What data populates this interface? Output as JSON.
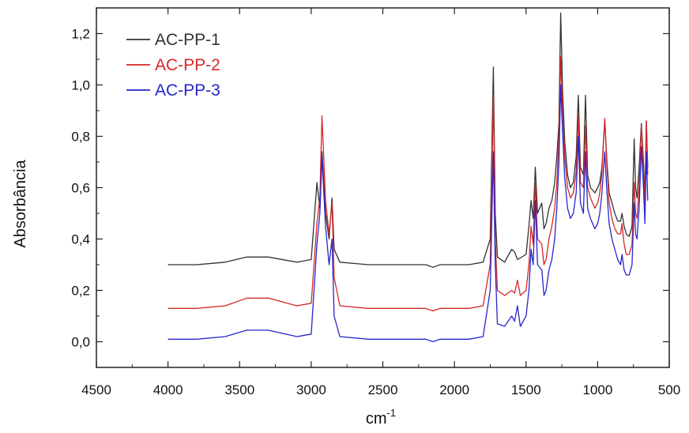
{
  "chart_data": {
    "type": "line",
    "title": "",
    "xlabel": "cm",
    "xlabel_superscript": "-1",
    "ylabel": "Absorbância",
    "xlim": [
      4500,
      500
    ],
    "ylim": [
      -0.1,
      1.3
    ],
    "x_reversed": true,
    "xticks": [
      4500,
      4000,
      3500,
      3000,
      2500,
      2000,
      1500,
      1000,
      500
    ],
    "xtick_labels": [
      "4500",
      "4000",
      "3500",
      "3000",
      "2500",
      "2000",
      "1500",
      "1000",
      "500"
    ],
    "yticks": [
      0.0,
      0.2,
      0.4,
      0.6,
      0.8,
      1.0,
      1.2
    ],
    "ytick_labels": [
      "0,0",
      "0,2",
      "0,4",
      "0,6",
      "0,8",
      "1,0",
      "1,2"
    ],
    "grid": false,
    "legend_position": "top-left",
    "series": [
      {
        "name": "AC-PP-1",
        "color": "#333333",
        "points": [
          [
            4000,
            0.3
          ],
          [
            3800,
            0.3
          ],
          [
            3600,
            0.31
          ],
          [
            3450,
            0.33
          ],
          [
            3300,
            0.33
          ],
          [
            3100,
            0.31
          ],
          [
            3000,
            0.32
          ],
          [
            2960,
            0.62
          ],
          [
            2940,
            0.52
          ],
          [
            2925,
            0.74
          ],
          [
            2900,
            0.5
          ],
          [
            2875,
            0.4
          ],
          [
            2855,
            0.56
          ],
          [
            2840,
            0.36
          ],
          [
            2800,
            0.31
          ],
          [
            2600,
            0.3
          ],
          [
            2400,
            0.3
          ],
          [
            2200,
            0.3
          ],
          [
            2150,
            0.29
          ],
          [
            2100,
            0.3
          ],
          [
            2000,
            0.3
          ],
          [
            1900,
            0.3
          ],
          [
            1800,
            0.31
          ],
          [
            1750,
            0.4
          ],
          [
            1728,
            1.07
          ],
          [
            1715,
            0.5
          ],
          [
            1700,
            0.33
          ],
          [
            1650,
            0.31
          ],
          [
            1600,
            0.36
          ],
          [
            1580,
            0.35
          ],
          [
            1560,
            0.32
          ],
          [
            1500,
            0.34
          ],
          [
            1480,
            0.45
          ],
          [
            1465,
            0.55
          ],
          [
            1450,
            0.48
          ],
          [
            1435,
            0.68
          ],
          [
            1420,
            0.5
          ],
          [
            1390,
            0.54
          ],
          [
            1375,
            0.44
          ],
          [
            1360,
            0.46
          ],
          [
            1340,
            0.52
          ],
          [
            1320,
            0.55
          ],
          [
            1300,
            0.62
          ],
          [
            1285,
            0.72
          ],
          [
            1270,
            0.85
          ],
          [
            1258,
            1.28
          ],
          [
            1245,
            0.98
          ],
          [
            1230,
            0.78
          ],
          [
            1210,
            0.65
          ],
          [
            1190,
            0.6
          ],
          [
            1170,
            0.62
          ],
          [
            1150,
            0.72
          ],
          [
            1135,
            0.96
          ],
          [
            1120,
            0.68
          ],
          [
            1100,
            0.65
          ],
          [
            1085,
            0.96
          ],
          [
            1070,
            0.65
          ],
          [
            1050,
            0.6
          ],
          [
            1020,
            0.58
          ],
          [
            1000,
            0.6
          ],
          [
            985,
            0.62
          ],
          [
            970,
            0.68
          ],
          [
            950,
            0.86
          ],
          [
            935,
            0.7
          ],
          [
            920,
            0.58
          ],
          [
            900,
            0.54
          ],
          [
            880,
            0.5
          ],
          [
            860,
            0.47
          ],
          [
            840,
            0.47
          ],
          [
            830,
            0.5
          ],
          [
            815,
            0.45
          ],
          [
            800,
            0.42
          ],
          [
            780,
            0.41
          ],
          [
            760,
            0.45
          ],
          [
            745,
            0.79
          ],
          [
            735,
            0.6
          ],
          [
            725,
            0.56
          ],
          [
            710,
            0.68
          ],
          [
            695,
            0.85
          ],
          [
            680,
            0.7
          ],
          [
            670,
            0.56
          ],
          [
            660,
            0.86
          ],
          [
            650,
            0.68
          ]
        ]
      },
      {
        "name": "AC-PP-2",
        "color": "#d62728",
        "points": [
          [
            4000,
            0.13
          ],
          [
            3800,
            0.13
          ],
          [
            3600,
            0.14
          ],
          [
            3450,
            0.17
          ],
          [
            3300,
            0.17
          ],
          [
            3100,
            0.14
          ],
          [
            3000,
            0.15
          ],
          [
            2960,
            0.46
          ],
          [
            2940,
            0.56
          ],
          [
            2925,
            0.88
          ],
          [
            2900,
            0.55
          ],
          [
            2875,
            0.42
          ],
          [
            2855,
            0.54
          ],
          [
            2840,
            0.25
          ],
          [
            2800,
            0.14
          ],
          [
            2600,
            0.13
          ],
          [
            2400,
            0.13
          ],
          [
            2200,
            0.13
          ],
          [
            2150,
            0.12
          ],
          [
            2100,
            0.13
          ],
          [
            2000,
            0.13
          ],
          [
            1900,
            0.13
          ],
          [
            1800,
            0.14
          ],
          [
            1750,
            0.3
          ],
          [
            1728,
            0.96
          ],
          [
            1715,
            0.4
          ],
          [
            1700,
            0.2
          ],
          [
            1650,
            0.18
          ],
          [
            1600,
            0.2
          ],
          [
            1580,
            0.19
          ],
          [
            1560,
            0.24
          ],
          [
            1540,
            0.18
          ],
          [
            1500,
            0.2
          ],
          [
            1480,
            0.3
          ],
          [
            1465,
            0.45
          ],
          [
            1450,
            0.38
          ],
          [
            1435,
            0.62
          ],
          [
            1420,
            0.4
          ],
          [
            1390,
            0.38
          ],
          [
            1375,
            0.3
          ],
          [
            1360,
            0.32
          ],
          [
            1340,
            0.4
          ],
          [
            1320,
            0.45
          ],
          [
            1300,
            0.52
          ],
          [
            1285,
            0.62
          ],
          [
            1270,
            0.8
          ],
          [
            1258,
            1.11
          ],
          [
            1245,
            0.9
          ],
          [
            1230,
            0.72
          ],
          [
            1210,
            0.6
          ],
          [
            1190,
            0.56
          ],
          [
            1170,
            0.58
          ],
          [
            1150,
            0.66
          ],
          [
            1135,
            0.88
          ],
          [
            1120,
            0.62
          ],
          [
            1100,
            0.6
          ],
          [
            1085,
            0.84
          ],
          [
            1070,
            0.6
          ],
          [
            1050,
            0.56
          ],
          [
            1020,
            0.52
          ],
          [
            1000,
            0.54
          ],
          [
            985,
            0.58
          ],
          [
            970,
            0.66
          ],
          [
            950,
            0.87
          ],
          [
            935,
            0.68
          ],
          [
            920,
            0.54
          ],
          [
            900,
            0.48
          ],
          [
            880,
            0.44
          ],
          [
            860,
            0.42
          ],
          [
            840,
            0.42
          ],
          [
            830,
            0.46
          ],
          [
            815,
            0.38
          ],
          [
            800,
            0.34
          ],
          [
            780,
            0.34
          ],
          [
            760,
            0.38
          ],
          [
            745,
            0.62
          ],
          [
            735,
            0.5
          ],
          [
            725,
            0.48
          ],
          [
            710,
            0.6
          ],
          [
            695,
            0.84
          ],
          [
            680,
            0.66
          ],
          [
            670,
            0.52
          ],
          [
            660,
            0.86
          ],
          [
            650,
            0.65
          ]
        ]
      },
      {
        "name": "AC-PP-3",
        "color": "#2626cc",
        "points": [
          [
            4000,
            0.01
          ],
          [
            3800,
            0.01
          ],
          [
            3600,
            0.02
          ],
          [
            3450,
            0.045
          ],
          [
            3300,
            0.045
          ],
          [
            3100,
            0.02
          ],
          [
            3000,
            0.03
          ],
          [
            2960,
            0.38
          ],
          [
            2940,
            0.5
          ],
          [
            2925,
            0.72
          ],
          [
            2900,
            0.45
          ],
          [
            2875,
            0.3
          ],
          [
            2855,
            0.4
          ],
          [
            2840,
            0.1
          ],
          [
            2800,
            0.02
          ],
          [
            2600,
            0.01
          ],
          [
            2400,
            0.01
          ],
          [
            2200,
            0.01
          ],
          [
            2150,
            0.0
          ],
          [
            2100,
            0.01
          ],
          [
            2000,
            0.01
          ],
          [
            1900,
            0.01
          ],
          [
            1800,
            0.02
          ],
          [
            1750,
            0.2
          ],
          [
            1728,
            0.74
          ],
          [
            1715,
            0.3
          ],
          [
            1700,
            0.07
          ],
          [
            1650,
            0.06
          ],
          [
            1600,
            0.1
          ],
          [
            1580,
            0.08
          ],
          [
            1560,
            0.14
          ],
          [
            1540,
            0.06
          ],
          [
            1500,
            0.1
          ],
          [
            1480,
            0.2
          ],
          [
            1465,
            0.36
          ],
          [
            1450,
            0.3
          ],
          [
            1435,
            0.55
          ],
          [
            1420,
            0.3
          ],
          [
            1390,
            0.28
          ],
          [
            1375,
            0.18
          ],
          [
            1360,
            0.2
          ],
          [
            1340,
            0.28
          ],
          [
            1320,
            0.32
          ],
          [
            1300,
            0.4
          ],
          [
            1285,
            0.52
          ],
          [
            1270,
            0.7
          ],
          [
            1258,
            1.0
          ],
          [
            1245,
            0.82
          ],
          [
            1230,
            0.64
          ],
          [
            1210,
            0.52
          ],
          [
            1190,
            0.48
          ],
          [
            1170,
            0.5
          ],
          [
            1150,
            0.58
          ],
          [
            1135,
            0.8
          ],
          [
            1120,
            0.54
          ],
          [
            1100,
            0.5
          ],
          [
            1085,
            0.74
          ],
          [
            1070,
            0.52
          ],
          [
            1050,
            0.48
          ],
          [
            1020,
            0.44
          ],
          [
            1000,
            0.46
          ],
          [
            985,
            0.5
          ],
          [
            970,
            0.58
          ],
          [
            950,
            0.74
          ],
          [
            935,
            0.58
          ],
          [
            920,
            0.46
          ],
          [
            900,
            0.4
          ],
          [
            880,
            0.36
          ],
          [
            860,
            0.32
          ],
          [
            840,
            0.3
          ],
          [
            830,
            0.34
          ],
          [
            815,
            0.28
          ],
          [
            800,
            0.26
          ],
          [
            780,
            0.26
          ],
          [
            760,
            0.3
          ],
          [
            745,
            0.54
          ],
          [
            735,
            0.42
          ],
          [
            725,
            0.4
          ],
          [
            710,
            0.52
          ],
          [
            695,
            0.76
          ],
          [
            680,
            0.6
          ],
          [
            670,
            0.46
          ],
          [
            660,
            0.74
          ],
          [
            650,
            0.55
          ]
        ]
      }
    ]
  }
}
